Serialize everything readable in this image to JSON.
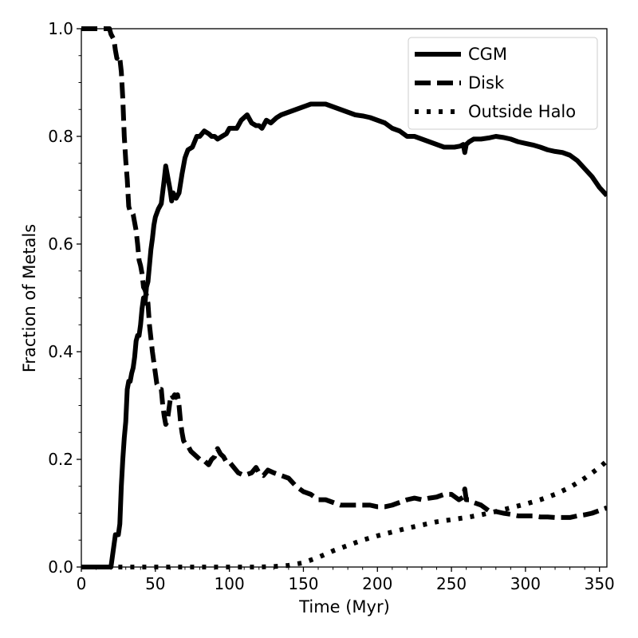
{
  "chart_data": {
    "type": "line",
    "xlabel": "Time (Myr)",
    "ylabel": "Fraction of Metals",
    "xlim": [
      0,
      355
    ],
    "ylim": [
      0,
      1.0
    ],
    "xticks": [
      0,
      50,
      100,
      150,
      200,
      250,
      300,
      350
    ],
    "yticks": [
      0.0,
      0.2,
      0.4,
      0.6,
      0.8,
      1.0
    ],
    "xtick_labels": [
      "0",
      "50",
      "100",
      "150",
      "200",
      "250",
      "300",
      "350"
    ],
    "ytick_labels": [
      "0.0",
      "0.2",
      "0.4",
      "0.6",
      "0.8",
      "1.0"
    ],
    "grid": false,
    "legend_position": "top-right",
    "line_color": "#000000",
    "series": [
      {
        "name": "CGM",
        "style": "solid",
        "x": [
          0,
          19,
          20,
          21,
          22,
          23,
          24,
          25,
          26,
          27,
          28,
          29,
          30,
          31,
          32,
          33,
          34,
          35,
          36,
          37,
          38,
          39,
          40,
          41,
          42,
          43,
          44,
          45,
          46,
          47,
          48,
          49,
          50,
          52,
          54,
          56,
          57,
          58,
          60,
          61,
          62,
          64,
          66,
          68,
          70,
          72,
          75,
          78,
          80,
          83,
          86,
          88,
          90,
          92,
          95,
          98,
          100,
          105,
          108,
          112,
          115,
          118,
          120,
          122,
          125,
          128,
          132,
          135,
          140,
          145,
          150,
          155,
          160,
          165,
          170,
          175,
          180,
          185,
          190,
          195,
          200,
          205,
          210,
          215,
          220,
          225,
          230,
          235,
          240,
          245,
          248,
          252,
          256,
          258,
          259,
          260,
          262,
          265,
          270,
          275,
          280,
          285,
          290,
          295,
          300,
          305,
          310,
          315,
          320,
          325,
          330,
          335,
          340,
          345,
          350,
          355
        ],
        "y": [
          0.0,
          0.0,
          0.0,
          0.02,
          0.04,
          0.06,
          0.06,
          0.06,
          0.08,
          0.15,
          0.2,
          0.24,
          0.27,
          0.33,
          0.345,
          0.345,
          0.36,
          0.37,
          0.39,
          0.42,
          0.43,
          0.43,
          0.45,
          0.48,
          0.5,
          0.49,
          0.52,
          0.53,
          0.56,
          0.59,
          0.61,
          0.635,
          0.65,
          0.665,
          0.675,
          0.72,
          0.745,
          0.73,
          0.7,
          0.68,
          0.695,
          0.685,
          0.695,
          0.73,
          0.76,
          0.775,
          0.78,
          0.8,
          0.8,
          0.81,
          0.805,
          0.8,
          0.8,
          0.795,
          0.8,
          0.805,
          0.815,
          0.815,
          0.83,
          0.84,
          0.825,
          0.82,
          0.82,
          0.815,
          0.83,
          0.825,
          0.835,
          0.84,
          0.845,
          0.85,
          0.855,
          0.86,
          0.86,
          0.86,
          0.855,
          0.85,
          0.845,
          0.84,
          0.838,
          0.835,
          0.83,
          0.825,
          0.815,
          0.81,
          0.8,
          0.8,
          0.795,
          0.79,
          0.785,
          0.78,
          0.78,
          0.78,
          0.782,
          0.785,
          0.77,
          0.785,
          0.79,
          0.795,
          0.795,
          0.797,
          0.8,
          0.798,
          0.795,
          0.79,
          0.787,
          0.784,
          0.78,
          0.775,
          0.772,
          0.77,
          0.765,
          0.755,
          0.74,
          0.725,
          0.705,
          0.69
        ]
      },
      {
        "name": "Disk",
        "style": "dashed",
        "x": [
          0,
          18,
          19,
          20,
          21,
          22,
          23,
          24,
          25,
          26,
          27,
          28,
          29,
          30,
          31,
          32,
          33,
          34,
          35,
          36,
          37,
          38,
          39,
          40,
          41,
          42,
          43,
          44,
          45,
          46,
          47,
          48,
          49,
          50,
          51,
          52,
          53,
          54,
          55,
          56,
          57,
          58,
          59,
          60,
          61,
          62,
          63,
          64,
          65,
          66,
          67,
          68,
          69,
          70,
          72,
          74,
          76,
          78,
          80,
          82,
          84,
          86,
          88,
          90,
          92,
          94,
          96,
          98,
          100,
          103,
          106,
          110,
          115,
          118,
          120,
          123,
          126,
          130,
          135,
          140,
          145,
          150,
          155,
          160,
          165,
          170,
          175,
          180,
          185,
          190,
          195,
          200,
          205,
          210,
          215,
          220,
          225,
          230,
          235,
          240,
          245,
          250,
          255,
          258,
          259,
          260,
          262,
          265,
          270,
          275,
          280,
          285,
          290,
          295,
          300,
          305,
          310,
          315,
          320,
          325,
          330,
          335,
          340,
          345,
          350,
          355
        ],
        "y": [
          1.0,
          1.0,
          1.0,
          0.99,
          0.985,
          0.98,
          0.96,
          0.945,
          0.95,
          0.945,
          0.92,
          0.87,
          0.8,
          0.755,
          0.72,
          0.67,
          0.66,
          0.66,
          0.655,
          0.64,
          0.625,
          0.6,
          0.57,
          0.56,
          0.545,
          0.52,
          0.515,
          0.505,
          0.49,
          0.45,
          0.425,
          0.4,
          0.38,
          0.36,
          0.34,
          0.335,
          0.33,
          0.33,
          0.3,
          0.28,
          0.265,
          0.27,
          0.29,
          0.31,
          0.32,
          0.315,
          0.32,
          0.315,
          0.32,
          0.3,
          0.27,
          0.25,
          0.235,
          0.23,
          0.225,
          0.215,
          0.21,
          0.205,
          0.2,
          0.2,
          0.195,
          0.19,
          0.2,
          0.205,
          0.22,
          0.21,
          0.205,
          0.195,
          0.195,
          0.185,
          0.175,
          0.17,
          0.175,
          0.185,
          0.175,
          0.17,
          0.18,
          0.175,
          0.17,
          0.165,
          0.15,
          0.14,
          0.135,
          0.125,
          0.125,
          0.12,
          0.115,
          0.115,
          0.115,
          0.115,
          0.115,
          0.112,
          0.112,
          0.115,
          0.12,
          0.125,
          0.128,
          0.125,
          0.128,
          0.13,
          0.135,
          0.135,
          0.125,
          0.13,
          0.145,
          0.125,
          0.125,
          0.12,
          0.115,
          0.105,
          0.103,
          0.1,
          0.098,
          0.095,
          0.095,
          0.095,
          0.093,
          0.093,
          0.092,
          0.092,
          0.092,
          0.095,
          0.097,
          0.1,
          0.105,
          0.11
        ]
      },
      {
        "name": "Outside Halo",
        "style": "dotted",
        "x": [
          25,
          50,
          100,
          120,
          130,
          140,
          150,
          160,
          170,
          180,
          190,
          200,
          210,
          220,
          230,
          240,
          250,
          260,
          270,
          280,
          290,
          300,
          310,
          320,
          330,
          340,
          350,
          355
        ],
        "y": [
          0.0,
          0.0,
          0.0,
          0.0,
          0.001,
          0.003,
          0.008,
          0.018,
          0.03,
          0.04,
          0.05,
          0.058,
          0.065,
          0.072,
          0.078,
          0.084,
          0.088,
          0.092,
          0.097,
          0.103,
          0.11,
          0.117,
          0.125,
          0.135,
          0.148,
          0.165,
          0.185,
          0.197
        ]
      }
    ]
  }
}
